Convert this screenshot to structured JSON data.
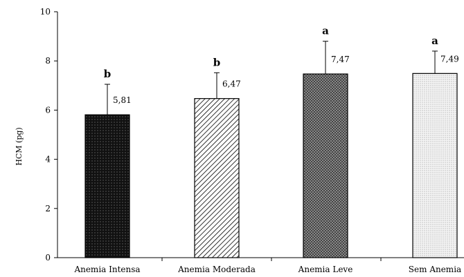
{
  "chart_data": {
    "type": "bar",
    "categories": [
      "Anemia Intensa",
      "Anemia Moderada",
      "Anemia Leve",
      "Sem Anemia"
    ],
    "values": [
      5.81,
      6.47,
      7.47,
      7.49
    ],
    "value_labels": [
      "5,81",
      "6,47",
      "7,47",
      "7,49"
    ],
    "error_upper": [
      7.05,
      7.52,
      8.8,
      8.4
    ],
    "significance": [
      "b",
      "b",
      "a",
      "a"
    ],
    "ylabel": "HCM (pg)",
    "ylim": [
      0,
      10
    ],
    "yticks": [
      0,
      2,
      4,
      6,
      8,
      10
    ],
    "ytick_labels": [
      "0",
      "2",
      "4",
      "6",
      "8",
      "10"
    ],
    "grid": false,
    "patterns": [
      "dots-dark",
      "diagonal-lines",
      "crosshatch",
      "dots-light"
    ]
  }
}
